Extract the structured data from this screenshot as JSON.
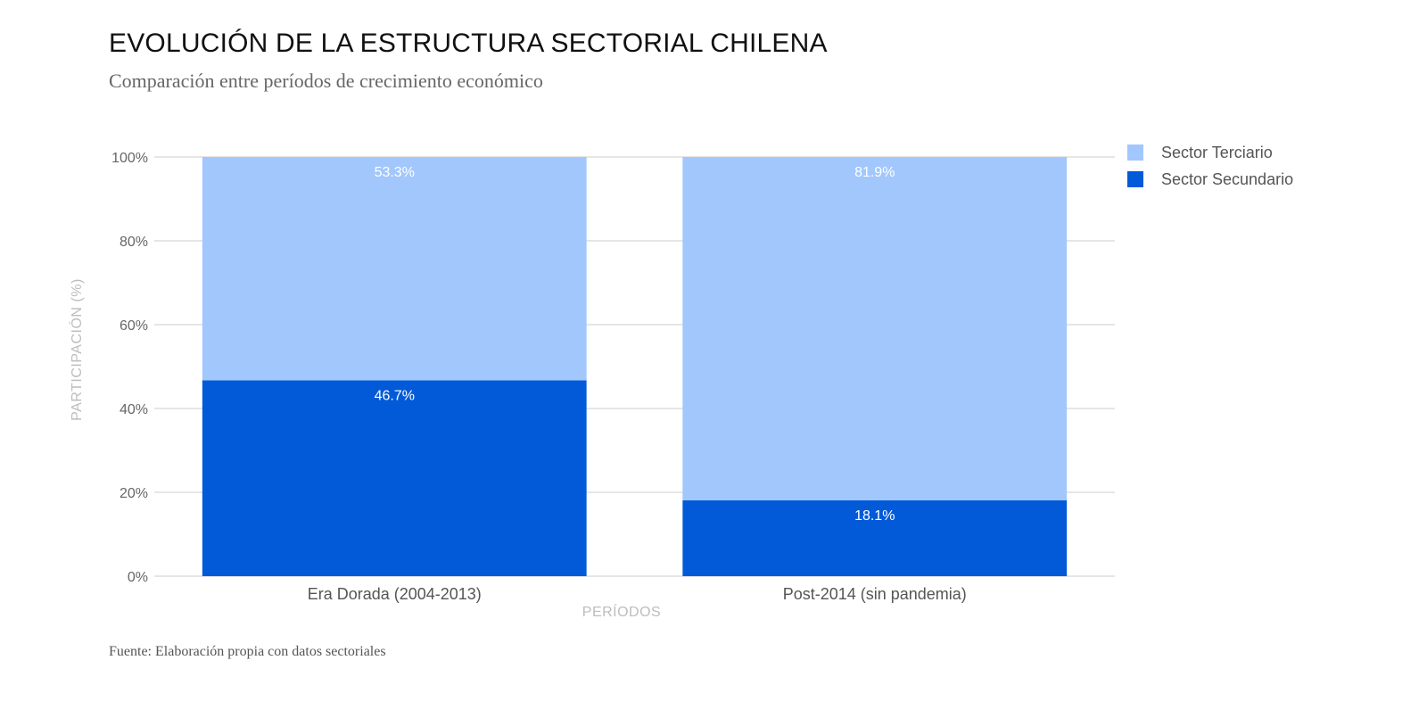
{
  "header": {
    "title": "EVOLUCIÓN DE LA ESTRUCTURA SECTORIAL CHILENA",
    "subtitle": "Comparación entre períodos de crecimiento económico"
  },
  "footer": {
    "source": "Fuente: Elaboración propia con datos sectoriales"
  },
  "colors": {
    "secundario": "#025ad9",
    "terciario": "#a1c7fd",
    "grid": "#cccccc"
  },
  "chart_data": {
    "type": "bar",
    "stacked": true,
    "title": "EVOLUCIÓN DE LA ESTRUCTURA SECTORIAL CHILENA",
    "subtitle": "Comparación entre períodos de crecimiento económico",
    "xlabel": "PERÍODOS",
    "ylabel": "PARTICIPACIÓN (%)",
    "ylim": [
      0,
      100
    ],
    "yticks": [
      0,
      20,
      40,
      60,
      80,
      100
    ],
    "ytick_labels": [
      "0%",
      "20%",
      "40%",
      "60%",
      "80%",
      "100%"
    ],
    "categories": [
      "Era Dorada (2004-2013)",
      "Post-2014 (sin pandemia)"
    ],
    "series": [
      {
        "name": "Sector Secundario",
        "values": [
          46.7,
          18.1
        ],
        "labels": [
          "46.7%",
          "18.1%"
        ]
      },
      {
        "name": "Sector Terciario",
        "values": [
          53.3,
          81.9
        ],
        "labels": [
          "53.3%",
          "81.9%"
        ]
      }
    ],
    "legend": {
      "position": "top-right",
      "items": [
        "Sector Terciario",
        "Sector Secundario"
      ]
    }
  }
}
